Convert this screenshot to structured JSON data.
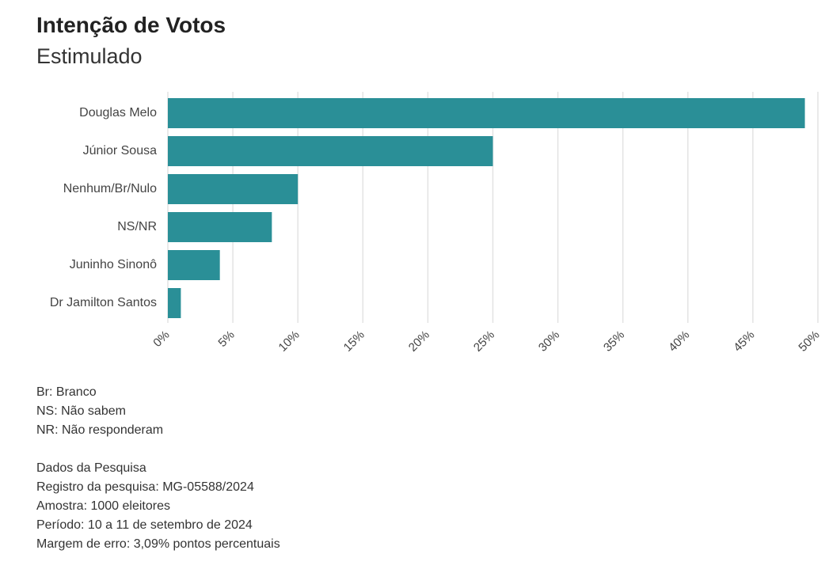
{
  "chart_data": {
    "type": "bar",
    "orientation": "horizontal",
    "title": "Intenção de Votos",
    "subtitle": "Estimulado",
    "categories": [
      "Douglas Melo",
      "Júnior Sousa",
      "Nenhum/Br/Nulo",
      "NS/NR",
      "Juninho Sinonô",
      "Dr Jamilton Santos"
    ],
    "values": [
      49,
      25,
      10,
      8,
      4,
      1
    ],
    "xlim": [
      0,
      50
    ],
    "xticks": [
      0,
      5,
      10,
      15,
      20,
      25,
      30,
      35,
      40,
      45,
      50
    ],
    "xtick_labels": [
      "0%",
      "5%",
      "10%",
      "15%",
      "20%",
      "25%",
      "30%",
      "35%",
      "40%",
      "45%",
      "50%"
    ],
    "xlabel": "",
    "ylabel": "",
    "grid": true,
    "bar_color": "#2a8f97"
  },
  "notes": {
    "legend_lines": [
      "Br: Branco",
      "NS: Não sabem",
      "NR: Não responderam"
    ],
    "survey_lines": [
      "Dados da Pesquisa",
      "Registro da pesquisa: MG-05588/2024",
      "Amostra: 1000 eleitores",
      "Período: 10 a 11 de setembro de 2024",
      "Margem de erro: 3,09% pontos percentuais"
    ]
  }
}
